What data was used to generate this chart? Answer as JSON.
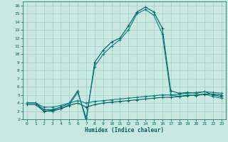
{
  "xlabel": "Humidex (Indice chaleur)",
  "xlim": [
    -0.5,
    23.5
  ],
  "ylim": [
    2,
    16.5
  ],
  "yticks": [
    2,
    3,
    4,
    5,
    6,
    7,
    8,
    9,
    10,
    11,
    12,
    13,
    14,
    15,
    16
  ],
  "xticks": [
    0,
    1,
    2,
    3,
    4,
    5,
    6,
    7,
    8,
    9,
    10,
    11,
    12,
    13,
    14,
    15,
    16,
    17,
    18,
    19,
    20,
    21,
    22,
    23
  ],
  "bg_color": "#c8e8e0",
  "grid_color": "#a0cccc",
  "line_color_dark": "#006060",
  "line_color_med": "#008080",
  "series1": [
    4.0,
    4.0,
    3.2,
    3.2,
    3.5,
    4.0,
    5.5,
    1.8,
    9.0,
    10.5,
    11.5,
    12.0,
    13.5,
    15.2,
    15.8,
    15.2,
    13.2,
    5.5,
    5.2,
    5.3,
    5.2,
    5.4,
    5.0,
    4.8
  ],
  "series2": [
    4.0,
    4.0,
    3.0,
    3.0,
    3.3,
    3.8,
    5.3,
    2.2,
    8.5,
    10.0,
    11.0,
    11.8,
    13.0,
    15.0,
    15.5,
    14.8,
    12.5,
    5.0,
    4.8,
    5.0,
    4.9,
    5.1,
    4.8,
    4.6
  ],
  "series_flat1": [
    3.8,
    3.8,
    3.0,
    3.1,
    3.3,
    3.7,
    4.0,
    3.5,
    3.8,
    4.0,
    4.1,
    4.2,
    4.3,
    4.4,
    4.5,
    4.6,
    4.7,
    4.7,
    4.8,
    4.9,
    5.0,
    5.1,
    5.1,
    5.0
  ],
  "series_flat2": [
    4.0,
    4.0,
    3.5,
    3.5,
    3.7,
    4.0,
    4.3,
    4.0,
    4.2,
    4.3,
    4.4,
    4.5,
    4.6,
    4.7,
    4.8,
    4.9,
    5.0,
    5.0,
    5.1,
    5.2,
    5.3,
    5.4,
    5.3,
    5.2
  ]
}
